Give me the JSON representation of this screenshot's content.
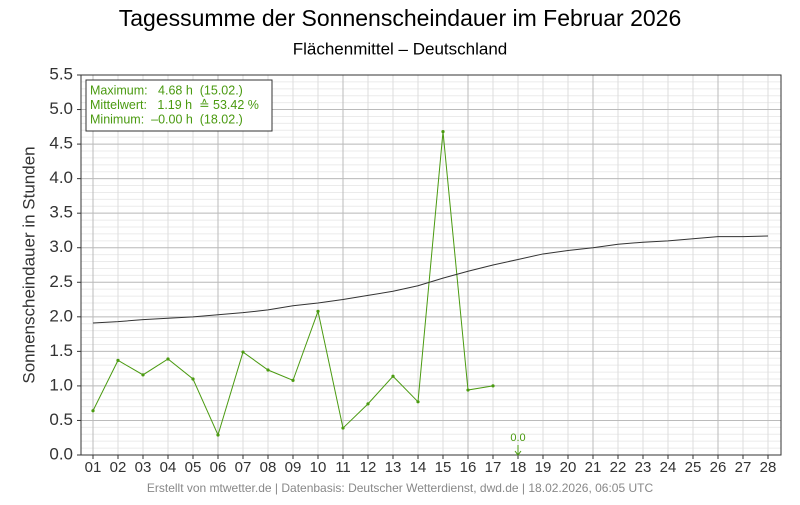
{
  "chart_data": {
    "type": "line",
    "title": "Tagessumme der Sonnenscheindauer im Februar 2026",
    "subtitle": "Flächenmittel – Deutschland",
    "y_label": "Sonnenscheindauer in Stunden",
    "footer": "Erstellt von mtwetter.de | Datenbasis: Deutscher Wetterdienst, dwd.de | 18.02.2026, 06:05 UTC",
    "info_box": [
      "Maximum:   4.68 h  (15.02.)",
      "Mittelwert:   1.19 h  ≙ 53.42 %",
      "Minimum:  –0.00 h  (18.02.)"
    ],
    "categories": [
      "01",
      "02",
      "03",
      "04",
      "05",
      "06",
      "07",
      "08",
      "09",
      "10",
      "11",
      "12",
      "13",
      "14",
      "15",
      "16",
      "17",
      "18",
      "19",
      "20",
      "21",
      "22",
      "23",
      "24",
      "25",
      "26",
      "27",
      "28"
    ],
    "series": [
      {
        "color": "#4a9a10",
        "values": [
          0.64,
          1.37,
          1.16,
          1.39,
          1.1,
          0.29,
          1.49,
          1.23,
          1.08,
          2.08,
          0.39,
          0.74,
          1.14,
          0.77,
          4.68,
          0.94,
          1.0,
          null,
          null,
          null,
          null,
          null,
          null,
          null,
          null,
          null,
          null,
          null
        ]
      },
      {
        "color": "#333333",
        "values": [
          1.91,
          1.93,
          1.96,
          1.98,
          2.0,
          2.03,
          2.06,
          2.1,
          2.16,
          2.2,
          2.25,
          2.31,
          2.37,
          2.45,
          2.56,
          2.66,
          2.75,
          2.83,
          2.91,
          2.96,
          3.0,
          3.05,
          3.08,
          3.1,
          3.13,
          3.16,
          3.16,
          3.17
        ]
      }
    ],
    "annotations": [
      {
        "text": "0.0",
        "category": "18",
        "value": 0,
        "color": "#4a9a10"
      }
    ],
    "ylim": [
      0,
      5.5
    ],
    "yticks": [
      {
        "value": 0,
        "label": "0.0"
      },
      {
        "value": 0.5,
        "label": "0.5"
      },
      {
        "value": 1,
        "label": "1.0"
      },
      {
        "value": 1.5,
        "label": "1.5"
      },
      {
        "value": 2,
        "label": "2.0"
      },
      {
        "value": 2.5,
        "label": "2.5"
      },
      {
        "value": 3,
        "label": "3.0"
      },
      {
        "value": 3.5,
        "label": "3.5"
      },
      {
        "value": 4,
        "label": "4.0"
      },
      {
        "value": 4.5,
        "label": "4.5"
      },
      {
        "value": 5,
        "label": "5.0"
      },
      {
        "value": 5.5,
        "label": "5.5"
      }
    ],
    "grid": true
  }
}
